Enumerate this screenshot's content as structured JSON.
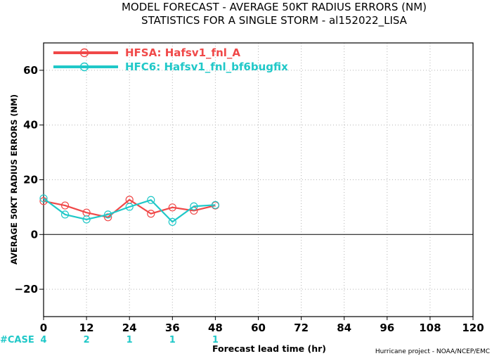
{
  "chart_data": {
    "type": "line",
    "title": "MODEL FORECAST - AVERAGE 50KT RADIUS ERRORS (NM)",
    "subtitle": "STATISTICS FOR A SINGLE STORM - al152022_LISA",
    "xlabel": "Forecast lead time (hr)",
    "ylabel": "AVERAGE 50KT RADIUS ERRORS (NM)",
    "xlim": [
      0,
      120
    ],
    "ylim": [
      -30,
      70
    ],
    "xticks": [
      0,
      12,
      24,
      36,
      48,
      60,
      72,
      84,
      96,
      108,
      120
    ],
    "yticks": [
      -20,
      0,
      20,
      40,
      60
    ],
    "grid": true,
    "legend_position": "top-left",
    "credit": "Hurricane project - NOAA/NCEP/EMC",
    "series": [
      {
        "name": "HFSA: Hafsv1_fnl_A",
        "color": "#f04848",
        "x": [
          0,
          6,
          12,
          18,
          24,
          30,
          36,
          42,
          48
        ],
        "y": [
          12.2,
          10.6,
          8.0,
          6.3,
          12.7,
          7.6,
          9.9,
          8.7,
          10.6
        ]
      },
      {
        "name": "HFC6: Hafsv1_fnl_bf6bugfix",
        "color": "#20c8c8",
        "x": [
          0,
          6,
          12,
          18,
          24,
          30,
          36,
          42,
          48
        ],
        "y": [
          13.2,
          7.3,
          5.5,
          7.3,
          10.1,
          12.6,
          4.6,
          10.3,
          10.8
        ]
      }
    ],
    "cases": {
      "label": "#CASE",
      "color": "#20c8c8",
      "entries": [
        {
          "x": 0,
          "count": "4"
        },
        {
          "x": 12,
          "count": "2"
        },
        {
          "x": 24,
          "count": "1"
        },
        {
          "x": 36,
          "count": "1"
        },
        {
          "x": 48,
          "count": "1"
        }
      ]
    }
  }
}
